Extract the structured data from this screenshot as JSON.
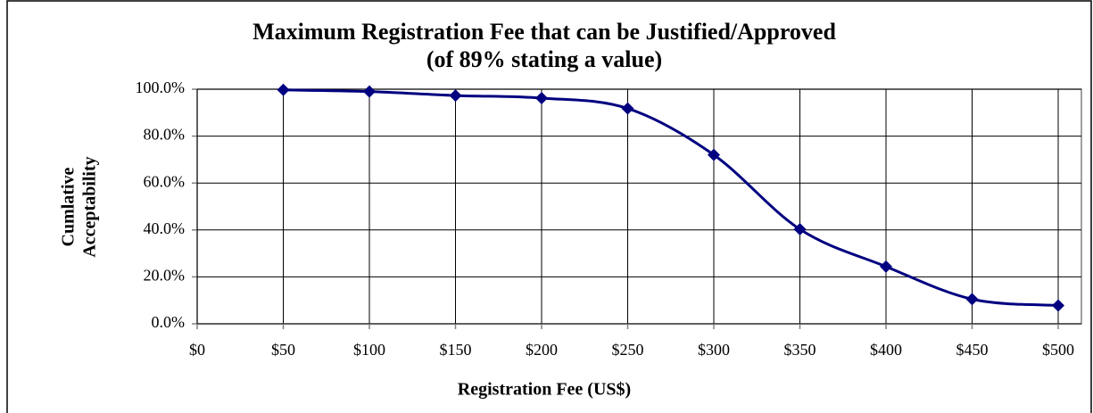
{
  "chart_data": {
    "type": "line",
    "title": "Maximum Registration Fee that can be Justified/Approved",
    "subtitle": "(of 89% stating a value)",
    "xlabel": "Registration Fee (US$)",
    "ylabel": [
      "Cumlative",
      "Acceptability"
    ],
    "x": [
      50,
      100,
      150,
      200,
      250,
      300,
      350,
      400,
      450,
      500
    ],
    "series": [
      {
        "name": "Cumlative Acceptability",
        "color": "#000080",
        "values": [
          99.7,
          99.0,
          97.3,
          96.2,
          91.8,
          72.0,
          40.3,
          24.4,
          10.5,
          7.8
        ]
      }
    ],
    "xlim": [
      0,
      500
    ],
    "xticks": [
      {
        "value": 0,
        "label": "$0"
      },
      {
        "value": 50,
        "label": "$50"
      },
      {
        "value": 100,
        "label": "$100"
      },
      {
        "value": 150,
        "label": "$150"
      },
      {
        "value": 200,
        "label": "$200"
      },
      {
        "value": 250,
        "label": "$250"
      },
      {
        "value": 300,
        "label": "$300"
      },
      {
        "value": 350,
        "label": "$350"
      },
      {
        "value": 400,
        "label": "$400"
      },
      {
        "value": 450,
        "label": "$450"
      },
      {
        "value": 500,
        "label": "$500"
      }
    ],
    "ylim": [
      0,
      100
    ],
    "yticks": [
      {
        "value": 0,
        "label": "0.0%"
      },
      {
        "value": 20,
        "label": "20.0%"
      },
      {
        "value": 40,
        "label": "40.0%"
      },
      {
        "value": 60,
        "label": "60.0%"
      },
      {
        "value": 80,
        "label": "80.0%"
      },
      {
        "value": 100,
        "label": "100.0%"
      }
    ],
    "grid": true
  }
}
